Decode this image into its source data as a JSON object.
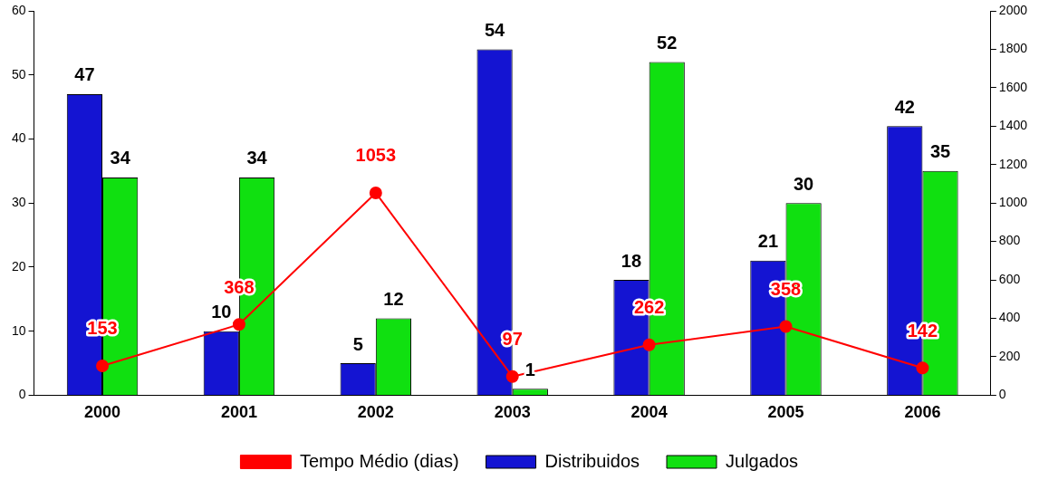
{
  "chart_data": {
    "type": "bar",
    "categories": [
      "2000",
      "2001",
      "2002",
      "2003",
      "2004",
      "2005",
      "2006"
    ],
    "series": [
      {
        "name": "Distribuidos",
        "color": "#1414d2",
        "values": [
          47,
          10,
          5,
          54,
          18,
          21,
          42
        ]
      },
      {
        "name": "Julgados",
        "color": "#10e010",
        "values": [
          34,
          34,
          12,
          1,
          52,
          30,
          35
        ]
      },
      {
        "name": "Tempo Médio (dias)",
        "type": "line",
        "axis": "y2",
        "color": "#ff0000",
        "values": [
          153,
          368,
          1053,
          97,
          262,
          358,
          142
        ]
      }
    ],
    "ylim": [
      0,
      60
    ],
    "yticks": [
      0,
      10,
      20,
      30,
      40,
      50,
      60
    ],
    "y2lim": [
      0,
      2000
    ],
    "y2ticks": [
      0,
      200,
      400,
      600,
      800,
      1000,
      1200,
      1400,
      1600,
      1800,
      2000
    ],
    "grid": false,
    "legend": "bottom",
    "marker": "circle",
    "line_style": "solid",
    "data_labels": true
  }
}
